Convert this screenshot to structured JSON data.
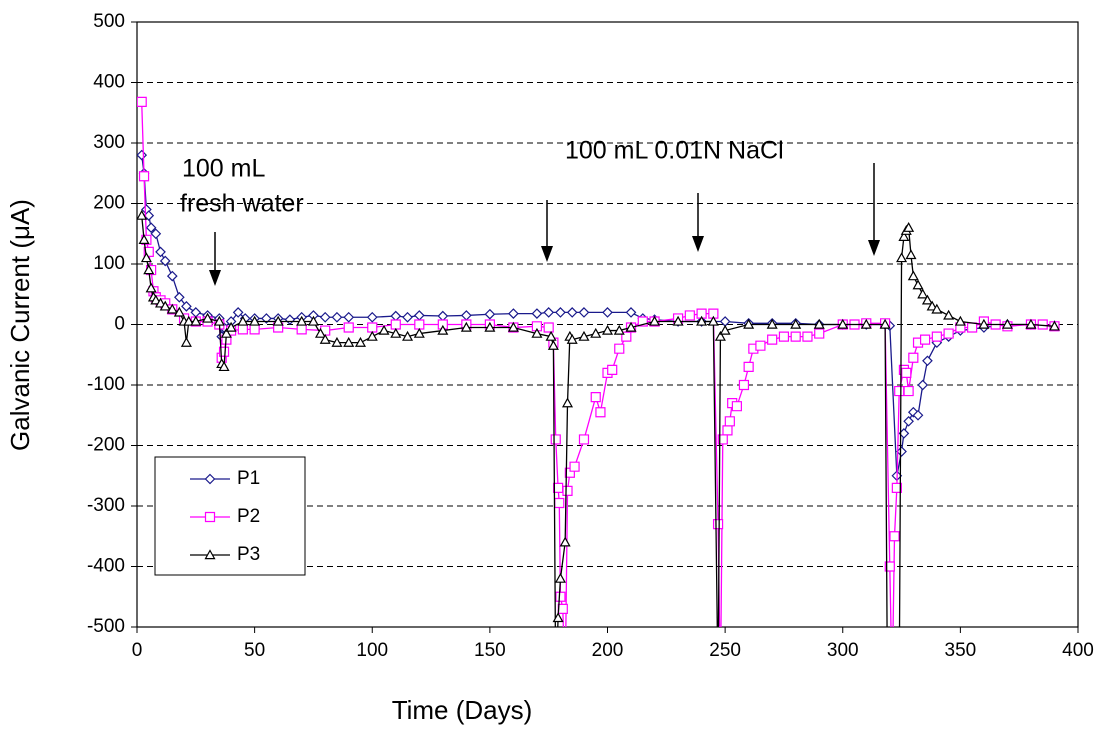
{
  "chart_data": {
    "type": "line",
    "xlabel": "Time (Days)",
    "ylabel": "Galvanic Current (μA)",
    "xlim": [
      0,
      400
    ],
    "xticks": [
      0,
      50,
      100,
      150,
      200,
      250,
      300,
      350,
      400
    ],
    "ylim": [
      -500,
      500
    ],
    "yticks": [
      -500,
      -400,
      -300,
      -200,
      -100,
      0,
      100,
      200,
      300,
      400,
      500
    ],
    "grid": true,
    "legend": "lower left",
    "annotations": [
      "100 mL",
      "fresh water",
      "100 mL 0.01N NaCl"
    ],
    "series": [
      {
        "name": "P1",
        "color": "#1a1a8c",
        "marker": "diamond",
        "x": [
          2,
          3,
          4,
          5,
          6,
          8,
          10,
          12,
          15,
          18,
          21,
          25,
          30,
          35,
          36,
          37,
          40,
          43,
          46,
          50,
          55,
          60,
          65,
          70,
          75,
          80,
          85,
          90,
          100,
          110,
          115,
          120,
          130,
          140,
          150,
          160,
          170,
          175,
          180,
          185,
          190,
          200,
          210,
          215,
          220,
          230,
          240,
          250,
          260,
          270,
          280,
          290,
          300,
          310,
          318,
          320,
          323,
          325,
          326,
          328,
          330,
          332,
          334,
          336,
          340,
          345,
          350,
          360,
          370,
          380,
          390
        ],
        "values": [
          280,
          250,
          190,
          180,
          160,
          150,
          120,
          105,
          80,
          45,
          30,
          20,
          15,
          10,
          -20,
          -5,
          5,
          20,
          10,
          10,
          10,
          10,
          8,
          12,
          15,
          12,
          12,
          12,
          12,
          14,
          12,
          15,
          14,
          15,
          17,
          18,
          18,
          20,
          20,
          20,
          20,
          20,
          20,
          10,
          8,
          5,
          5,
          5,
          2,
          2,
          2,
          0,
          0,
          0,
          0,
          -2,
          -250,
          -210,
          -180,
          -160,
          -145,
          -150,
          -100,
          -60,
          -30,
          -20,
          -10,
          -5,
          0,
          0,
          -2
        ]
      },
      {
        "name": "P2",
        "color": "#ff00ff",
        "marker": "square",
        "x": [
          2,
          3,
          4,
          5,
          6,
          7,
          8,
          10,
          12,
          15,
          20,
          25,
          30,
          35,
          36,
          37,
          38,
          40,
          45,
          50,
          60,
          70,
          80,
          90,
          100,
          110,
          120,
          130,
          140,
          150,
          160,
          170,
          175,
          177,
          178,
          179,
          179.5,
          180,
          181,
          182,
          183,
          184,
          186,
          190,
          195,
          197,
          200,
          202,
          205,
          208,
          210,
          215,
          220,
          230,
          235,
          240,
          245,
          247,
          248,
          249,
          251,
          252,
          253,
          255,
          258,
          260,
          262,
          265,
          270,
          275,
          280,
          285,
          290,
          300,
          305,
          310,
          318,
          320,
          321,
          322,
          323,
          324,
          326,
          327,
          328,
          330,
          332,
          335,
          340,
          345,
          350,
          355,
          360,
          365,
          370,
          380,
          385,
          390
        ],
        "values": [
          368,
          245,
          140,
          120,
          90,
          55,
          45,
          40,
          35,
          25,
          10,
          5,
          5,
          0,
          -55,
          -45,
          -25,
          -10,
          -8,
          -8,
          -5,
          -8,
          -10,
          -5,
          -5,
          0,
          0,
          0,
          0,
          0,
          -5,
          -3,
          -5,
          -30,
          -190,
          -270,
          -295,
          -450,
          -470,
          -600,
          -275,
          -245,
          -235,
          -190,
          -120,
          -145,
          -80,
          -75,
          -40,
          -20,
          -5,
          5,
          5,
          10,
          15,
          18,
          18,
          -330,
          -600,
          -190,
          -175,
          -160,
          -130,
          -135,
          -100,
          -70,
          -40,
          -35,
          -25,
          -20,
          -20,
          -20,
          -15,
          0,
          0,
          2,
          2,
          -400,
          -600,
          -350,
          -270,
          -110,
          -75,
          -80,
          -110,
          -55,
          -30,
          -25,
          -20,
          -15,
          -5,
          -5,
          5,
          0,
          -3,
          0,
          0,
          -3
        ]
      },
      {
        "name": "P3",
        "color": "#000000",
        "marker": "triangle",
        "x": [
          2,
          3,
          4,
          5,
          6,
          7,
          8,
          10,
          12,
          15,
          18,
          20,
          21,
          22,
          25,
          30,
          35,
          36,
          37,
          38,
          40,
          45,
          50,
          60,
          70,
          75,
          78,
          80,
          85,
          90,
          95,
          100,
          105,
          110,
          115,
          120,
          130,
          140,
          150,
          160,
          170,
          176,
          177,
          178,
          179,
          180,
          182,
          183,
          184,
          185,
          190,
          195,
          200,
          205,
          210,
          220,
          230,
          240,
          245,
          247,
          248,
          250,
          260,
          270,
          280,
          290,
          300,
          310,
          318,
          319,
          324,
          325,
          326,
          327,
          328,
          329,
          330,
          332,
          334,
          336,
          338,
          340,
          345,
          350,
          360,
          370,
          380,
          390
        ],
        "values": [
          180,
          140,
          110,
          90,
          60,
          45,
          40,
          35,
          30,
          25,
          20,
          5,
          -30,
          5,
          5,
          10,
          5,
          -65,
          -70,
          -15,
          -5,
          5,
          5,
          5,
          5,
          5,
          -15,
          -25,
          -30,
          -30,
          -30,
          -20,
          -10,
          -15,
          -20,
          -15,
          -10,
          -5,
          -5,
          -5,
          -15,
          -20,
          -35,
          -600,
          -485,
          -420,
          -360,
          -130,
          -20,
          -25,
          -20,
          -15,
          -10,
          -10,
          -5,
          5,
          5,
          5,
          5,
          -600,
          -20,
          -10,
          0,
          0,
          0,
          0,
          0,
          0,
          0,
          -600,
          -600,
          110,
          145,
          155,
          160,
          115,
          80,
          65,
          50,
          40,
          30,
          25,
          15,
          5,
          0,
          0,
          0,
          -3
        ]
      }
    ]
  }
}
